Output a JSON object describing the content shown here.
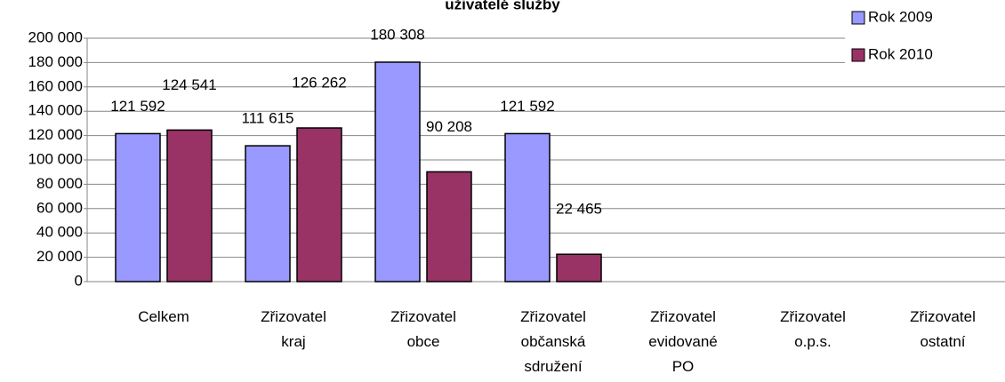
{
  "chart_data": {
    "type": "bar",
    "title": "uživatelé služby",
    "categories": [
      "Celkem",
      "Zřizovatel kraj",
      "Zřizovatel obce",
      "Zřizovatel občanská sdružení",
      "Zřizovatel evidované PO",
      "Zřizovatel o.p.s.",
      "Zřizovatel ostatní"
    ],
    "series": [
      {
        "name": "Rok 2009",
        "color": "#9999ff",
        "values": [
          121592,
          111615,
          180308,
          121592,
          null,
          null,
          null
        ],
        "value_labels": [
          "121 592",
          "111 615",
          "180 308",
          "121 592",
          null,
          null,
          null
        ]
      },
      {
        "name": "Rok 2010",
        "color": "#993366",
        "values": [
          124541,
          126262,
          90208,
          22465,
          null,
          null,
          null
        ],
        "value_labels": [
          "124 541",
          "126 262",
          "90 208",
          "22 465",
          null,
          null,
          null
        ]
      }
    ],
    "ylim": [
      0,
      200000
    ],
    "yticks": [
      0,
      {
        "value": 20000,
        "label": "20 000"
      },
      {
        "value": 40000,
        "label": "40 000"
      },
      {
        "value": 60000,
        "label": "60 000"
      },
      {
        "value": 80000,
        "label": "80 000"
      },
      {
        "value": 100000,
        "label": "100 000"
      },
      {
        "value": 120000,
        "label": "120 000"
      },
      {
        "value": 140000,
        "label": "140 000"
      },
      {
        "value": 160000,
        "label": "160 000"
      },
      {
        "value": 180000,
        "label": "180 000"
      },
      {
        "value": 200000,
        "label": "200 000"
      }
    ],
    "grid": true,
    "legend": "top-right"
  }
}
